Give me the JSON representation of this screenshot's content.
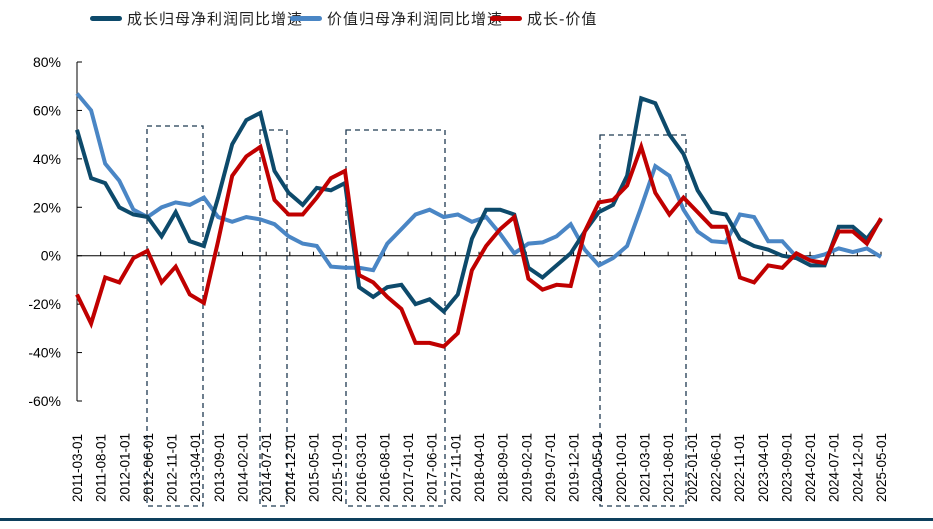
{
  "chart_data": {
    "type": "line",
    "title": "",
    "xlabel": "",
    "ylabel": "",
    "ylim": [
      -60,
      80
    ],
    "yticks": [
      80,
      60,
      40,
      20,
      0,
      -20,
      -40,
      -60
    ],
    "ytick_labels": [
      "80%",
      "60%",
      "40%",
      "20%",
      "0%",
      "-20%",
      "-40%",
      "-60%"
    ],
    "xtick_labels": [
      "2011-03-01",
      "2011-08-01",
      "2012-01-01",
      "2012-06-01",
      "2012-11-01",
      "2013-04-01",
      "2013-09-01",
      "2014-02-01",
      "2014-07-01",
      "2014-12-01",
      "2015-05-01",
      "2015-10-01",
      "2016-03-01",
      "2016-08-01",
      "2017-01-01",
      "2017-06-01",
      "2017-11-01",
      "2018-04-01",
      "2018-09-01",
      "2019-02-01",
      "2019-07-01",
      "2019-12-01",
      "2020-05-01",
      "2020-10-01",
      "2021-03-01",
      "2021-08-01",
      "2022-01-01",
      "2022-06-01",
      "2022-11-01",
      "2023-04-01",
      "2023-09-01",
      "2024-02-01",
      "2024-07-01",
      "2024-12-01",
      "2025-05-01"
    ],
    "legend_position": "top",
    "grid": false,
    "series": [
      {
        "name": "成长归母净利润同比增速",
        "color": "#0d4a6b",
        "values": [
          52,
          32,
          30,
          20,
          17,
          16,
          8,
          18,
          6,
          4,
          24,
          46,
          56,
          59,
          35,
          26,
          21,
          28,
          27,
          30,
          -13,
          -17,
          -13,
          -12,
          -20,
          -18,
          -23,
          -16,
          7,
          19,
          19,
          17,
          -5,
          -9,
          -4,
          1,
          10,
          18,
          21,
          33,
          65,
          63,
          50,
          42,
          27,
          18,
          17,
          7,
          4,
          2.5,
          0,
          -1,
          -4,
          -4,
          12,
          12,
          7,
          15
        ]
      },
      {
        "name": "价值归母净利润同比增速",
        "color": "#4a86c5",
        "values": [
          67,
          60,
          38,
          31,
          19,
          16,
          20,
          22,
          21,
          24,
          16,
          14,
          16,
          15,
          13,
          8,
          5,
          4,
          -4.5,
          -5,
          -5,
          -6,
          5,
          11,
          17,
          19,
          16,
          17,
          14,
          16,
          9,
          1,
          5,
          5.5,
          8,
          13,
          2.5,
          -4,
          -1,
          4,
          20,
          37,
          33,
          19,
          10,
          6,
          5.5,
          17,
          16,
          6,
          6,
          -0.5,
          -1,
          0.5,
          3,
          1.5,
          3,
          -0.5
        ]
      },
      {
        "name": "成长-价值",
        "color": "#c00000",
        "values": [
          -16,
          -28,
          -9,
          -11,
          -1,
          2,
          -11,
          -4.5,
          -16,
          -19.5,
          6,
          33,
          41,
          45,
          23,
          17,
          17,
          24,
          32,
          35,
          -8,
          -11,
          -17,
          -22,
          -36,
          -36,
          -37.5,
          -32,
          -6,
          4,
          11,
          16,
          -9.5,
          -14,
          -12,
          -12.5,
          10,
          22,
          23,
          29,
          45,
          26,
          17,
          24,
          18,
          12,
          12,
          -9,
          -11,
          -4,
          -5,
          1,
          -2,
          -3,
          10,
          10,
          5,
          15.5
        ]
      }
    ]
  }
}
